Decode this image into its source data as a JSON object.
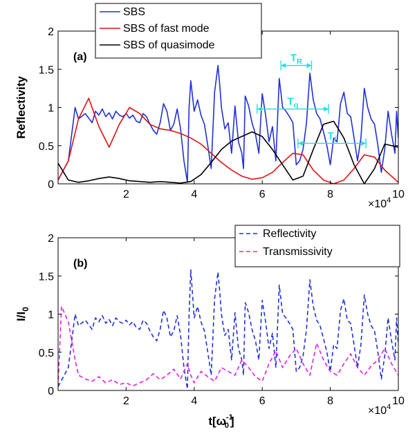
{
  "colors": {
    "blue": "#1f2fd8",
    "red": "#e01010",
    "black": "#000000",
    "cyan": "#22dede",
    "magenta": "#e020e0"
  },
  "chart_data": [
    {
      "id": "a",
      "type": "line",
      "panel_label": "(a)",
      "ylabel": "Reflectivity",
      "xlabel": "",
      "x_multiplier": "×10",
      "x_multiplier_exp": "4",
      "xlim": [
        0,
        10
      ],
      "ylim": [
        0,
        2
      ],
      "xticks": [
        2,
        4,
        6,
        8,
        10
      ],
      "yticks": [
        0,
        0.5,
        1,
        1.5,
        2
      ],
      "ytick_labels": [
        "0",
        "0.5",
        "1",
        "1.5",
        "2"
      ],
      "legend": "top-left",
      "series": [
        {
          "name": "SBS",
          "color": "#1f2fd8",
          "style": "solid",
          "x": [
            0,
            0.3,
            0.5,
            0.6,
            0.8,
            1.0,
            1.1,
            1.2,
            1.3,
            1.4,
            1.5,
            1.6,
            1.7,
            1.8,
            1.9,
            2.0,
            2.1,
            2.2,
            2.3,
            2.4,
            2.5,
            2.6,
            2.7,
            2.8,
            2.9,
            3.0,
            3.1,
            3.2,
            3.3,
            3.4,
            3.5,
            3.6,
            3.7,
            3.8,
            3.85,
            3.9,
            4.0,
            4.1,
            4.2,
            4.3,
            4.4,
            4.5,
            4.6,
            4.7,
            4.75,
            4.8,
            4.9,
            5.0,
            5.1,
            5.2,
            5.3,
            5.4,
            5.45,
            5.5,
            5.6,
            5.7,
            5.8,
            5.9,
            6.0,
            6.1,
            6.2,
            6.3,
            6.4,
            6.5,
            6.6,
            6.7,
            6.8,
            6.9,
            7.0,
            7.1,
            7.2,
            7.3,
            7.4,
            7.5,
            7.6,
            7.7,
            7.8,
            7.9,
            8.0,
            8.1,
            8.2,
            8.3,
            8.4,
            8.5,
            8.6,
            8.7,
            8.8,
            8.9,
            9.0,
            9.1,
            9.2,
            9.3,
            9.4,
            9.5,
            9.6,
            9.7,
            9.8,
            9.9,
            9.95,
            10.0
          ],
          "y": [
            0.05,
            0.3,
            1.0,
            0.85,
            0.92,
            0.8,
            0.95,
            0.9,
            0.98,
            0.88,
            0.93,
            0.85,
            0.95,
            0.9,
            0.88,
            0.92,
            0.86,
            0.9,
            0.82,
            0.8,
            0.92,
            0.88,
            0.78,
            0.7,
            0.65,
            0.8,
            1.05,
            0.95,
            0.7,
            0.78,
            0.98,
            0.72,
            0.3,
            0.02,
            1.0,
            1.35,
            0.95,
            1.1,
            0.9,
            0.78,
            0.5,
            0.2,
            1.2,
            1.55,
            1.3,
            1.0,
            0.72,
            0.8,
            0.4,
            1.02,
            0.55,
            0.4,
            0.2,
            1.15,
            1.02,
            0.8,
            0.65,
            0.4,
            1.18,
            0.9,
            0.55,
            0.75,
            0.3,
            1.38,
            1.0,
            0.95,
            0.88,
            0.8,
            0.25,
            0.3,
            0.45,
            0.8,
            1.45,
            1.1,
            0.92,
            0.85,
            0.68,
            0.5,
            0.25,
            0.6,
            0.55,
            1.05,
            1.2,
            0.92,
            0.88,
            0.6,
            0.3,
            0.6,
            1.25,
            1.0,
            0.85,
            0.78,
            0.5,
            0.15,
            0.45,
            0.95,
            0.65,
            0.4,
            0.95,
            0.6
          ]
        },
        {
          "name": "SBS of fast mode",
          "color": "#e01010",
          "style": "solid",
          "x": [
            0,
            0.3,
            0.6,
            0.9,
            1.2,
            1.5,
            1.8,
            2.1,
            2.4,
            2.7,
            3.0,
            3.3,
            3.6,
            3.9,
            4.2,
            4.5,
            4.8,
            5.1,
            5.4,
            5.7,
            6.0,
            6.3,
            6.6,
            6.9,
            7.2,
            7.5,
            7.8,
            8.1,
            8.4,
            8.7,
            9.0,
            9.3,
            9.6,
            10.0
          ],
          "y": [
            0.05,
            0.3,
            0.85,
            1.12,
            0.75,
            0.48,
            0.78,
            1.0,
            0.92,
            0.78,
            0.72,
            0.7,
            0.66,
            0.6,
            0.52,
            0.4,
            0.28,
            0.18,
            0.1,
            0.06,
            0.08,
            0.15,
            0.28,
            0.4,
            0.38,
            0.18,
            0.05,
            0.0,
            0.05,
            0.2,
            0.38,
            0.35,
            0.18,
            0.02
          ]
        },
        {
          "name": "SBS of quasimode",
          "color": "#000000",
          "style": "solid",
          "x": [
            0,
            0.3,
            0.6,
            0.9,
            1.2,
            1.5,
            1.8,
            2.1,
            2.4,
            2.7,
            3.0,
            3.3,
            3.6,
            3.9,
            4.2,
            4.5,
            4.8,
            5.1,
            5.4,
            5.7,
            6.0,
            6.3,
            6.6,
            6.9,
            7.2,
            7.5,
            7.8,
            8.1,
            8.4,
            8.7,
            9.0,
            9.3,
            9.6,
            10.0
          ],
          "y": [
            0.27,
            0.05,
            0.02,
            0.04,
            0.07,
            0.09,
            0.07,
            0.04,
            0.03,
            0.02,
            0.03,
            0.02,
            0.01,
            0.03,
            0.12,
            0.28,
            0.45,
            0.56,
            0.62,
            0.68,
            0.62,
            0.45,
            0.25,
            0.05,
            0.1,
            0.45,
            0.78,
            0.82,
            0.6,
            0.25,
            0.0,
            0.2,
            0.52,
            0.48
          ]
        }
      ],
      "annotations": [
        {
          "label": "T",
          "sub": "R",
          "x1": 6.55,
          "x2": 7.45,
          "y": 1.55,
          "color": "#22dede"
        },
        {
          "label": "T",
          "sub": "q",
          "x1": 5.85,
          "x2": 7.95,
          "y": 0.98,
          "color": "#22dede"
        },
        {
          "label": "T",
          "sub": "f",
          "x1": 7.05,
          "x2": 9.05,
          "y": 0.53,
          "color": "#22dede"
        }
      ]
    },
    {
      "id": "b",
      "type": "line",
      "panel_label": "(b)",
      "ylabel": "I/I",
      "ylabel_sub": "0",
      "xlabel": "t[ω",
      "xlabel_sub": "0",
      "xlabel_sup": "-1",
      "xlabel_end": "]",
      "x_multiplier": "×10",
      "x_multiplier_exp": "4",
      "xlim": [
        0,
        10
      ],
      "ylim": [
        0,
        2
      ],
      "xticks": [
        2,
        4,
        6,
        8,
        10
      ],
      "yticks": [
        0,
        0.5,
        1,
        1.5,
        2
      ],
      "ytick_labels": [
        "0",
        "0.5",
        "1",
        "1.5",
        "2"
      ],
      "legend": "top-right",
      "series": [
        {
          "name": "Reflectivity",
          "color": "#1f2fd8",
          "style": "dashed",
          "x": [
            0,
            0.3,
            0.5,
            0.6,
            0.8,
            1.0,
            1.1,
            1.2,
            1.3,
            1.4,
            1.5,
            1.6,
            1.7,
            1.8,
            1.9,
            2.0,
            2.1,
            2.2,
            2.3,
            2.4,
            2.5,
            2.6,
            2.7,
            2.8,
            2.9,
            3.0,
            3.1,
            3.2,
            3.3,
            3.4,
            3.5,
            3.6,
            3.7,
            3.8,
            3.85,
            3.9,
            4.0,
            4.1,
            4.2,
            4.3,
            4.4,
            4.5,
            4.6,
            4.7,
            4.75,
            4.8,
            4.9,
            5.0,
            5.1,
            5.2,
            5.3,
            5.4,
            5.45,
            5.5,
            5.6,
            5.7,
            5.8,
            5.9,
            6.0,
            6.1,
            6.2,
            6.3,
            6.4,
            6.5,
            6.6,
            6.7,
            6.8,
            6.9,
            7.0,
            7.1,
            7.2,
            7.3,
            7.4,
            7.5,
            7.6,
            7.7,
            7.8,
            7.9,
            8.0,
            8.1,
            8.2,
            8.3,
            8.4,
            8.5,
            8.6,
            8.7,
            8.8,
            8.9,
            9.0,
            9.1,
            9.2,
            9.3,
            9.4,
            9.5,
            9.6,
            9.7,
            9.8,
            9.9,
            9.95,
            10.0
          ],
          "y": [
            0.05,
            0.3,
            1.0,
            0.85,
            0.92,
            0.8,
            0.95,
            0.9,
            0.98,
            0.88,
            0.93,
            0.85,
            0.95,
            0.9,
            0.88,
            0.92,
            0.86,
            0.9,
            0.82,
            0.8,
            0.92,
            0.88,
            0.78,
            0.7,
            0.65,
            0.8,
            1.05,
            0.95,
            0.7,
            0.78,
            0.98,
            0.72,
            0.3,
            0.02,
            1.0,
            1.58,
            0.95,
            1.1,
            0.9,
            0.78,
            0.5,
            0.2,
            1.2,
            1.55,
            1.3,
            1.0,
            0.72,
            0.8,
            0.4,
            1.02,
            0.55,
            0.4,
            0.2,
            1.15,
            1.02,
            0.8,
            0.65,
            0.4,
            1.18,
            0.9,
            0.55,
            0.75,
            0.3,
            1.38,
            1.0,
            0.95,
            0.88,
            0.8,
            0.25,
            0.3,
            0.45,
            0.8,
            1.45,
            1.1,
            0.92,
            0.85,
            0.68,
            0.5,
            0.25,
            0.6,
            0.55,
            1.05,
            1.2,
            0.92,
            0.88,
            0.6,
            0.3,
            0.6,
            1.25,
            1.0,
            0.85,
            0.78,
            0.5,
            0.15,
            0.45,
            0.95,
            0.65,
            0.4,
            0.95,
            0.6
          ]
        },
        {
          "name": "Transmissivity",
          "color": "#e020e0",
          "style": "dashed",
          "x": [
            0,
            0.1,
            0.3,
            0.5,
            0.6,
            0.8,
            1.0,
            1.2,
            1.4,
            1.6,
            1.8,
            2.0,
            2.2,
            2.4,
            2.6,
            2.8,
            3.0,
            3.2,
            3.4,
            3.6,
            3.8,
            3.9,
            4.0,
            4.2,
            4.4,
            4.6,
            4.8,
            5.0,
            5.2,
            5.4,
            5.6,
            5.8,
            6.0,
            6.2,
            6.4,
            6.6,
            6.8,
            7.0,
            7.2,
            7.4,
            7.6,
            7.8,
            8.0,
            8.2,
            8.4,
            8.6,
            8.8,
            9.0,
            9.2,
            9.4,
            9.6,
            9.8,
            10.0
          ],
          "y": [
            0.05,
            1.1,
            0.9,
            0.4,
            0.2,
            0.15,
            0.12,
            0.18,
            0.1,
            0.14,
            0.08,
            0.1,
            0.06,
            0.1,
            0.14,
            0.22,
            0.14,
            0.2,
            0.28,
            0.15,
            0.35,
            0.2,
            0.1,
            0.25,
            0.18,
            0.12,
            0.3,
            0.25,
            0.2,
            0.4,
            0.3,
            0.18,
            0.12,
            0.35,
            0.52,
            0.3,
            0.45,
            0.55,
            0.35,
            0.2,
            0.62,
            0.4,
            0.25,
            0.2,
            0.35,
            0.48,
            0.3,
            0.2,
            0.32,
            0.4,
            0.55,
            0.35,
            0.2
          ]
        }
      ],
      "annotations": []
    }
  ]
}
